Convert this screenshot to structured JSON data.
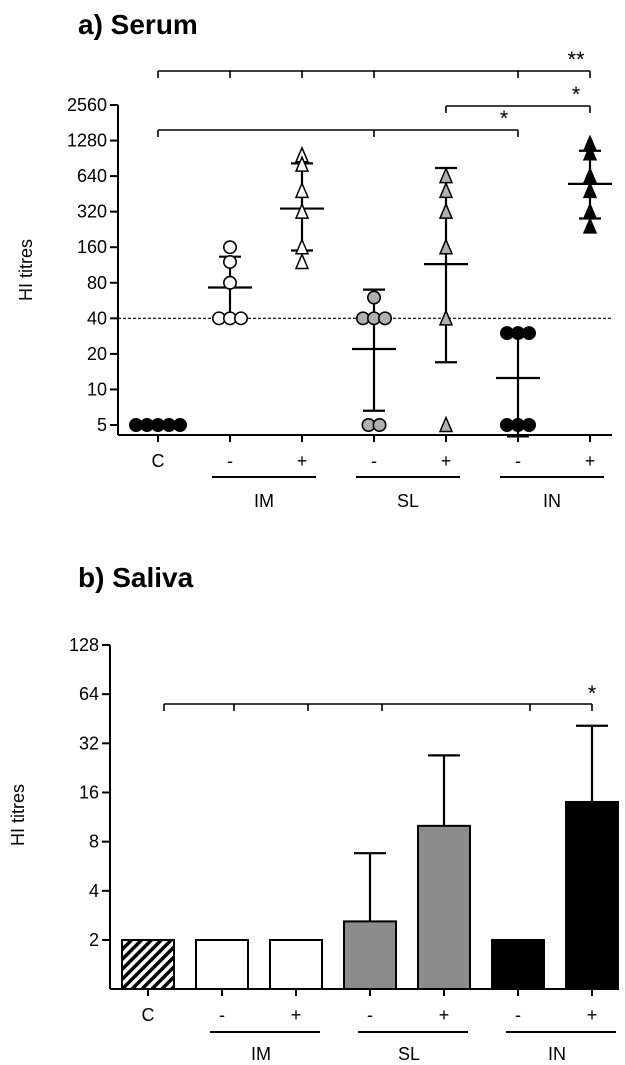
{
  "chart_data": [
    {
      "panel": "a",
      "type": "scatter",
      "title": "a) Serum",
      "ylabel": "HI titres",
      "yscale": "log2",
      "ylim": [
        4,
        2560
      ],
      "yticks": [
        5,
        10,
        20,
        40,
        80,
        160,
        320,
        640,
        1280,
        2560
      ],
      "ytick_labels": [
        "5",
        "10",
        "20",
        "40",
        "80",
        "160",
        "320",
        "640",
        "1280",
        "2560"
      ],
      "reference_line": 40,
      "categories": [
        "C",
        "-",
        "+",
        "-",
        "+",
        "-",
        "+"
      ],
      "groups": [
        {
          "label": "IM",
          "categories": [
            1,
            2
          ]
        },
        {
          "label": "SL",
          "categories": [
            3,
            4
          ]
        },
        {
          "label": "IN",
          "categories": [
            5,
            6
          ]
        }
      ],
      "series": [
        {
          "category": 0,
          "marker": "circle",
          "fill": "#000000",
          "points": [
            5,
            5,
            5,
            5,
            5
          ],
          "mean": 5,
          "sd": [
            5,
            5
          ]
        },
        {
          "category": 1,
          "marker": "circle",
          "fill": "#ffffff",
          "points": [
            160,
            120,
            80,
            40,
            40,
            40
          ],
          "mean": 73,
          "sd": [
            40,
            133
          ]
        },
        {
          "category": 2,
          "marker": "triangle",
          "fill": "#ffffff",
          "points": [
            960,
            800,
            480,
            320,
            160,
            120
          ],
          "mean": 340,
          "sd": [
            150,
            820
          ]
        },
        {
          "category": 3,
          "marker": "circle",
          "fill": "#b0b0b0",
          "points": [
            60,
            40,
            40,
            40,
            5,
            5
          ],
          "mean": 22,
          "sd": [
            6.6,
            70
          ]
        },
        {
          "category": 4,
          "marker": "triangle",
          "fill": "#b0b0b0",
          "points": [
            640,
            480,
            320,
            160,
            40,
            5
          ],
          "mean": 115,
          "sd": [
            17,
            750
          ]
        },
        {
          "category": 5,
          "marker": "circle",
          "fill": "#000000",
          "points": [
            30,
            30,
            30,
            5,
            5,
            5
          ],
          "mean": 12.5,
          "sd": [
            4,
            31
          ]
        },
        {
          "category": 6,
          "marker": "triangle",
          "fill": "#000000",
          "points": [
            1200,
            1000,
            640,
            480,
            320,
            240
          ],
          "mean": 550,
          "sd": [
            280,
            1050
          ]
        }
      ],
      "significance": [
        {
          "from": 0,
          "to": [
            1,
            2,
            3,
            5
          ],
          "end": 6,
          "label": "**"
        },
        {
          "from": 0,
          "to": [
            3
          ],
          "end": 5,
          "label": "*"
        },
        {
          "from": 4,
          "to": [],
          "end": 6,
          "label": "*"
        }
      ]
    },
    {
      "panel": "b",
      "type": "bar",
      "title": "b) Saliva",
      "ylabel": "HI titres",
      "yscale": "log2",
      "ylim": [
        1,
        128
      ],
      "yticks": [
        2,
        4,
        8,
        16,
        32,
        64,
        128
      ],
      "ytick_labels": [
        "2",
        "4",
        "8",
        "16",
        "32",
        "64",
        "128"
      ],
      "categories": [
        "C",
        "-",
        "+",
        "-",
        "+",
        "-",
        "+"
      ],
      "groups": [
        {
          "label": "IM",
          "categories": [
            1,
            2
          ]
        },
        {
          "label": "SL",
          "categories": [
            3,
            4
          ]
        },
        {
          "label": "IN",
          "categories": [
            5,
            6
          ]
        }
      ],
      "values": [
        2,
        2,
        2,
        2.6,
        10,
        2,
        14
      ],
      "error_upper": [
        null,
        null,
        null,
        6.8,
        27,
        null,
        41
      ],
      "bar_fills": [
        "hatched",
        "#ffffff",
        "#ffffff",
        "#8c8c8c",
        "#8c8c8c",
        "#000000",
        "#000000"
      ],
      "significance": [
        {
          "from": 0,
          "to": [
            1,
            2,
            3,
            5
          ],
          "end": 6,
          "label": "*"
        }
      ]
    }
  ]
}
